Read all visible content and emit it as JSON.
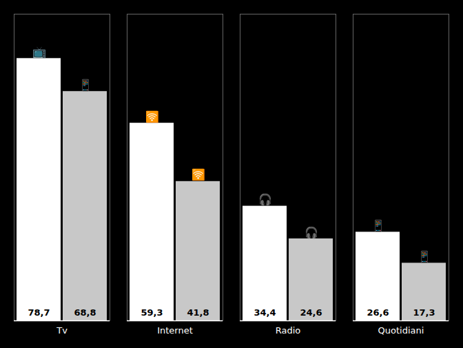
{
  "chart_data": {
    "type": "bar",
    "categories": [
      "Tv",
      "Internet",
      "Radio",
      "Quotidiani"
    ],
    "series": [
      {
        "color": "#ffffff",
        "values": [
          78.7,
          59.3,
          34.4,
          26.6
        ],
        "value_labels": [
          "78,7",
          "59,3",
          "34,4",
          "26,6"
        ],
        "annotations": [
          "📺",
          "🛜",
          "🎧",
          "📱"
        ]
      },
      {
        "color": "#c8c8c8",
        "values": [
          68.8,
          41.8,
          24.6,
          17.3
        ],
        "value_labels": [
          "68,8",
          "41,8",
          "24,6",
          "17,3"
        ],
        "annotations": [
          "📱",
          "🛜",
          "🎧",
          "📱"
        ]
      }
    ],
    "ylim": [
      0,
      92
    ],
    "data_labels": true,
    "tick_labels": "x",
    "grid": false
  }
}
